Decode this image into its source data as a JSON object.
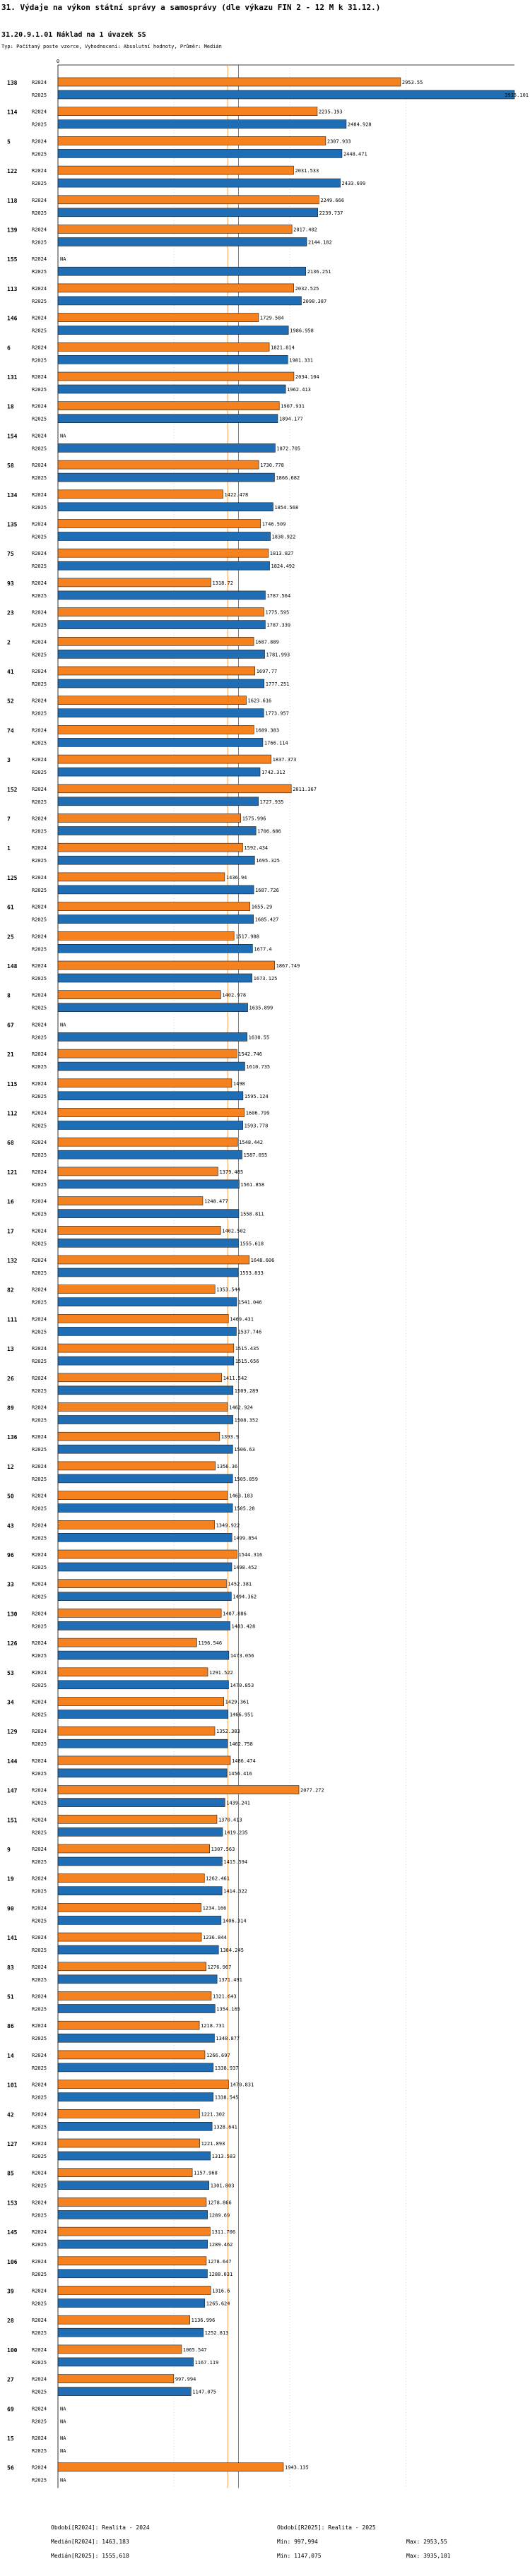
{
  "header": {
    "title": "31. Výdaje na výkon státní správy a samosprávy (dle výkazu FIN 2 - 12 M k 31.12.)",
    "subtitle": "31.20.9.1.01 Náklad na 1 úvazek SS",
    "meta": "Typ: Počítaný poste vzorce, Vyhodnocení: Absolutní hodnoty, Průměr: Medián"
  },
  "colors": {
    "R2024": "#f5821f",
    "R2025": "#1f6db4",
    "bar_border": "#1a1a1a",
    "median_2024": "#f5821f",
    "median_2025": "#1f6db4",
    "grid": "#999999"
  },
  "chart_data": {
    "type": "bar",
    "orientation": "horizontal",
    "title": "31.20.9.1.01 Náklad na 1 úvazek SS",
    "xlim": [
      0,
      3935.101
    ],
    "series": [
      {
        "name": "R2024",
        "label": "R2024"
      },
      {
        "name": "R2025",
        "label": "R2025"
      }
    ],
    "medians": {
      "R2024": 1463.183,
      "R2025": 1555.618
    },
    "na_label": "NA",
    "groups": [
      {
        "id": "138",
        "v2024": 2953.55,
        "v2025": 3935.101
      },
      {
        "id": "114",
        "v2024": 2235.193,
        "v2025": 2484.928
      },
      {
        "id": "5",
        "v2024": 2307.933,
        "v2025": 2448.471
      },
      {
        "id": "122",
        "v2024": 2031.533,
        "v2025": 2433.699
      },
      {
        "id": "118",
        "v2024": 2249.666,
        "v2025": 2239.737
      },
      {
        "id": "139",
        "v2024": 2017.402,
        "v2025": 2144.182
      },
      {
        "id": "155",
        "v2024": null,
        "v2025": 2136.251
      },
      {
        "id": "113",
        "v2024": 2032.525,
        "v2025": 2098.387
      },
      {
        "id": "146",
        "v2024": 1729.584,
        "v2025": 1986.958
      },
      {
        "id": "6",
        "v2024": 1821.814,
        "v2025": 1981.331
      },
      {
        "id": "131",
        "v2024": 2034.104,
        "v2025": 1962.413
      },
      {
        "id": "18",
        "v2024": 1907.931,
        "v2025": 1894.177
      },
      {
        "id": "154",
        "v2024": null,
        "v2025": 1872.705
      },
      {
        "id": "58",
        "v2024": 1730.778,
        "v2025": 1866.682
      },
      {
        "id": "134",
        "v2024": 1422.478,
        "v2025": 1854.568
      },
      {
        "id": "135",
        "v2024": 1746.509,
        "v2025": 1830.922
      },
      {
        "id": "75",
        "v2024": 1813.827,
        "v2025": 1824.492
      },
      {
        "id": "93",
        "v2024": 1318.72,
        "v2025": 1787.564
      },
      {
        "id": "23",
        "v2024": 1775.595,
        "v2025": 1787.339
      },
      {
        "id": "2",
        "v2024": 1687.889,
        "v2025": 1781.993
      },
      {
        "id": "41",
        "v2024": 1697.77,
        "v2025": 1777.251
      },
      {
        "id": "52",
        "v2024": 1623.616,
        "v2025": 1773.957
      },
      {
        "id": "74",
        "v2024": 1689.383,
        "v2025": 1766.114
      },
      {
        "id": "3",
        "v2024": 1837.373,
        "v2025": 1742.312
      },
      {
        "id": "152",
        "v2024": 2011.367,
        "v2025": 1727.935
      },
      {
        "id": "7",
        "v2024": 1575.996,
        "v2025": 1706.686
      },
      {
        "id": "1",
        "v2024": 1592.434,
        "v2025": 1695.325
      },
      {
        "id": "125",
        "v2024": 1436.94,
        "v2025": 1687.726
      },
      {
        "id": "61",
        "v2024": 1655.29,
        "v2025": 1685.427
      },
      {
        "id": "25",
        "v2024": 1517.988,
        "v2025": 1677.4
      },
      {
        "id": "148",
        "v2024": 1867.749,
        "v2025": 1673.125
      },
      {
        "id": "8",
        "v2024": 1402.978,
        "v2025": 1635.899
      },
      {
        "id": "67",
        "v2024": null,
        "v2025": 1630.55
      },
      {
        "id": "21",
        "v2024": 1542.746,
        "v2025": 1610.735
      },
      {
        "id": "115",
        "v2024": 1498.0,
        "v2025": 1595.124
      },
      {
        "id": "112",
        "v2024": 1606.799,
        "v2025": 1593.778
      },
      {
        "id": "68",
        "v2024": 1548.442,
        "v2025": 1587.055
      },
      {
        "id": "121",
        "v2024": 1379.485,
        "v2025": 1561.858
      },
      {
        "id": "16",
        "v2024": 1248.477,
        "v2025": 1558.811
      },
      {
        "id": "17",
        "v2024": 1402.502,
        "v2025": 1555.618
      },
      {
        "id": "132",
        "v2024": 1648.606,
        "v2025": 1553.833
      },
      {
        "id": "82",
        "v2024": 1353.544,
        "v2025": 1541.046
      },
      {
        "id": "111",
        "v2024": 1469.431,
        "v2025": 1537.746
      },
      {
        "id": "13",
        "v2024": 1515.435,
        "v2025": 1515.656
      },
      {
        "id": "26",
        "v2024": 1411.542,
        "v2025": 1509.289
      },
      {
        "id": "89",
        "v2024": 1462.924,
        "v2025": 1508.352
      },
      {
        "id": "136",
        "v2024": 1393.9,
        "v2025": 1506.63
      },
      {
        "id": "12",
        "v2024": 1356.36,
        "v2025": 1505.859
      },
      {
        "id": "50",
        "v2024": 1463.183,
        "v2025": 1505.28
      },
      {
        "id": "43",
        "v2024": 1349.922,
        "v2025": 1499.854
      },
      {
        "id": "96",
        "v2024": 1544.316,
        "v2025": 1498.452
      },
      {
        "id": "33",
        "v2024": 1452.381,
        "v2025": 1494.362
      },
      {
        "id": "130",
        "v2024": 1407.886,
        "v2025": 1483.428
      },
      {
        "id": "126",
        "v2024": 1196.546,
        "v2025": 1473.056
      },
      {
        "id": "53",
        "v2024": 1291.522,
        "v2025": 1470.853
      },
      {
        "id": "34",
        "v2024": 1429.361,
        "v2025": 1466.951
      },
      {
        "id": "129",
        "v2024": 1352.383,
        "v2025": 1462.758
      },
      {
        "id": "144",
        "v2024": 1486.474,
        "v2025": 1456.416
      },
      {
        "id": "147",
        "v2024": 2077.272,
        "v2025": 1439.241
      },
      {
        "id": "151",
        "v2024": 1370.413,
        "v2025": 1419.235
      },
      {
        "id": "9",
        "v2024": 1307.563,
        "v2025": 1415.594
      },
      {
        "id": "19",
        "v2024": 1262.461,
        "v2025": 1414.322
      },
      {
        "id": "90",
        "v2024": 1234.166,
        "v2025": 1406.314
      },
      {
        "id": "141",
        "v2024": 1236.844,
        "v2025": 1384.245
      },
      {
        "id": "83",
        "v2024": 1276.967,
        "v2025": 1371.491
      },
      {
        "id": "51",
        "v2024": 1321.643,
        "v2025": 1354.165
      },
      {
        "id": "86",
        "v2024": 1218.731,
        "v2025": 1348.877
      },
      {
        "id": "14",
        "v2024": 1266.697,
        "v2025": 1338.937
      },
      {
        "id": "101",
        "v2024": 1470.831,
        "v2025": 1338.545
      },
      {
        "id": "42",
        "v2024": 1221.302,
        "v2025": 1328.641
      },
      {
        "id": "127",
        "v2024": 1221.893,
        "v2025": 1313.583
      },
      {
        "id": "85",
        "v2024": 1157.968,
        "v2025": 1301.803
      },
      {
        "id": "153",
        "v2024": 1278.866,
        "v2025": 1289.69
      },
      {
        "id": "145",
        "v2024": 1311.706,
        "v2025": 1289.462
      },
      {
        "id": "106",
        "v2024": 1278.647,
        "v2025": 1288.031
      },
      {
        "id": "39",
        "v2024": 1316.6,
        "v2025": 1265.624
      },
      {
        "id": "28",
        "v2024": 1136.996,
        "v2025": 1252.813
      },
      {
        "id": "100",
        "v2024": 1065.547,
        "v2025": 1167.119
      },
      {
        "id": "27",
        "v2024": 997.994,
        "v2025": 1147.075
      },
      {
        "id": "69",
        "v2024": null,
        "v2025": null
      },
      {
        "id": "15",
        "v2024": null,
        "v2025": null
      },
      {
        "id": "56",
        "v2024": 1943.135,
        "v2025": null
      }
    ]
  },
  "footer": {
    "left_head": "",
    "legend_2024": "Období[R2024]: Realita - 2024",
    "legend_2025": "Období[R2025]: Realita - 2025",
    "median_2024": "Medián[R2024]: 1463,183",
    "median_2025": "Medián[R2025]: 1555,618",
    "min_2024": "Min: 997,994",
    "min_2025": "Min: 1147,075",
    "max_2024": "Max: 2953,55",
    "max_2025": "Max: 3935,101"
  }
}
